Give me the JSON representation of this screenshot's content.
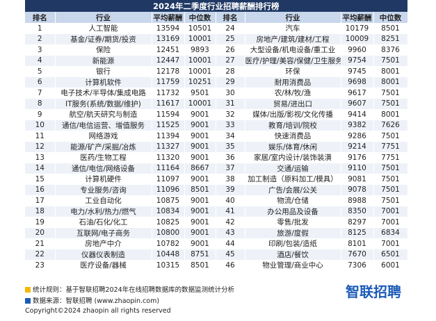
{
  "title": "2024年二季度行业招聘薪酬排行榜",
  "table": {
    "header": [
      "排名",
      "行业",
      "平均薪酬",
      "中位数",
      "排名",
      "行业",
      "平均薪酬",
      "中位数"
    ],
    "rows": [
      [
        1,
        "人工智能",
        13594,
        10501,
        24,
        "汽车",
        10179,
        8501
      ],
      [
        2,
        "基金/证券/期货/投资",
        13169,
        10001,
        25,
        "房地产/建筑/建材/工程",
        10009,
        8251
      ],
      [
        3,
        "保险",
        12451,
        9893,
        26,
        "大型设备/机电设备/重工业",
        9960,
        8376
      ],
      [
        4,
        "新能源",
        12447,
        10001,
        27,
        "医疗/护理/美容/保健/卫生服务",
        9754,
        7501
      ],
      [
        5,
        "银行",
        12178,
        10001,
        28,
        "环保",
        9745,
        8001
      ],
      [
        6,
        "计算机软件",
        11759,
        10251,
        29,
        "耐用消费品",
        9698,
        8001
      ],
      [
        7,
        "电子技术/半导体/集成电路",
        11732,
        9501,
        30,
        "农/林/牧/渔",
        9617,
        7501
      ],
      [
        8,
        "IT服务(系统/数据/维护)",
        11617,
        10001,
        31,
        "贸易/进出口",
        9607,
        7501
      ],
      [
        9,
        "航空/航天研究与制造",
        11594,
        9001,
        32,
        "媒体/出版/影视/文化传播",
        9414,
        8001
      ],
      [
        10,
        "通信/电信运营、增值服务",
        11525,
        9001,
        33,
        "教育/培训/院校",
        9382,
        7626
      ],
      [
        11,
        "网络游戏",
        11394,
        9001,
        34,
        "快速消费品",
        9286,
        7501
      ],
      [
        12,
        "能源/矿产/采掘/冶炼",
        11327,
        9001,
        35,
        "娱乐/体育/休闲",
        9214,
        7751
      ],
      [
        13,
        "医药/生物工程",
        11320,
        9001,
        36,
        "家居/室内设计/装饰装潢",
        9176,
        7751
      ],
      [
        14,
        "通信/电信/网络设备",
        11164,
        8667,
        37,
        "交通/运输",
        9110,
        7501
      ],
      [
        15,
        "计算机硬件",
        11097,
        9001,
        38,
        "加工制造（原料加工/模具）",
        9081,
        7501
      ],
      [
        16,
        "专业服务/咨询",
        11096,
        8501,
        39,
        "广告/会展/公关",
        9078,
        7501
      ],
      [
        17,
        "工业自动化",
        10875,
        9001,
        40,
        "物流/仓储",
        8988,
        7501
      ],
      [
        18,
        "电力/水利/热力/燃气",
        10834,
        9001,
        41,
        "办公用品及设备",
        8350,
        7001
      ],
      [
        19,
        "石油/石化/化工",
        10825,
        9001,
        42,
        "零售/批发",
        8297,
        7001
      ],
      [
        20,
        "互联网/电子商务",
        10800,
        9001,
        43,
        "旅游/度假",
        8125,
        6834
      ],
      [
        21,
        "房地产中介",
        10782,
        9001,
        44,
        "印刷/包装/造纸",
        8101,
        7001
      ],
      [
        22,
        "仪器仪表制造",
        10448,
        8751,
        45,
        "酒店/餐饮",
        7670,
        6501
      ],
      [
        23,
        "医疗设备/器械",
        10315,
        8501,
        46,
        "物业管理/商业中心",
        7306,
        6001
      ]
    ]
  },
  "footer": {
    "rule": "统计规则：基于智联招聘2024年在线招聘数据库的数据监测统计分析",
    "source": "数据来源：智联招聘 (www.zhaopin.com)",
    "copyright": "Copyright©2024 zhaopin all rights reserved",
    "logo": "智联招聘"
  }
}
